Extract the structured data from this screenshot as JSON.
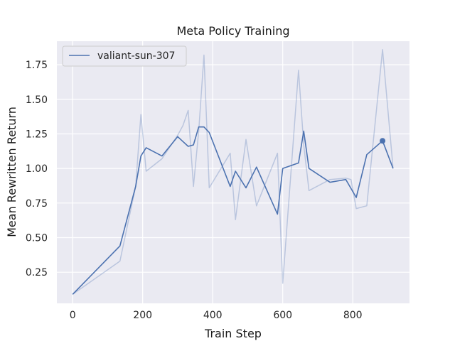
{
  "chart_data": {
    "type": "line",
    "title": "Meta Policy Training",
    "xlabel": "Train Step",
    "ylabel": "Mean Rewritten Return",
    "xlim": [
      -45,
      962
    ],
    "ylim": [
      0.025,
      1.92
    ],
    "grid": true,
    "legend": "top-left",
    "xticks": [
      0,
      200,
      400,
      600,
      800
    ],
    "yticks": [
      0.25,
      0.5,
      0.75,
      1.0,
      1.25,
      1.5,
      1.75
    ],
    "xtick_labels": [
      "0",
      "200",
      "400",
      "600",
      "800"
    ],
    "ytick_labels": [
      "0.25",
      "0.50",
      "0.75",
      "1.00",
      "1.25",
      "1.50",
      "1.75"
    ],
    "series": [
      {
        "name": "valiant-sun-307",
        "color": "#4c72b0",
        "raw_alpha": 0.3,
        "raw": {
          "x": [
            0,
            135,
            180,
            195,
            210,
            255,
            300,
            315,
            330,
            345,
            360,
            375,
            390,
            450,
            465,
            495,
            525,
            585,
            600,
            645,
            660,
            675,
            735,
            780,
            795,
            810,
            840,
            885,
            915
          ],
          "y": [
            0.09,
            0.33,
            0.87,
            1.39,
            0.98,
            1.07,
            1.24,
            1.31,
            1.42,
            0.87,
            1.27,
            1.82,
            0.86,
            1.11,
            0.63,
            1.21,
            0.73,
            1.11,
            0.17,
            1.71,
            1.17,
            0.84,
            0.92,
            0.93,
            0.92,
            0.71,
            0.73,
            1.86,
            1.0
          ]
        },
        "smoothed": {
          "x": [
            0,
            135,
            180,
            195,
            210,
            255,
            300,
            330,
            345,
            360,
            375,
            390,
            450,
            465,
            495,
            525,
            585,
            600,
            645,
            660,
            675,
            735,
            780,
            810,
            840,
            885,
            915
          ],
          "y": [
            0.09,
            0.44,
            0.87,
            1.09,
            1.15,
            1.09,
            1.23,
            1.16,
            1.17,
            1.3,
            1.3,
            1.26,
            0.87,
            0.98,
            0.86,
            1.01,
            0.67,
            1.0,
            1.04,
            1.27,
            1.0,
            0.9,
            0.92,
            0.79,
            1.1,
            1.2,
            1.0
          ]
        },
        "marker": {
          "x": 885,
          "y": 1.2
        }
      }
    ]
  }
}
